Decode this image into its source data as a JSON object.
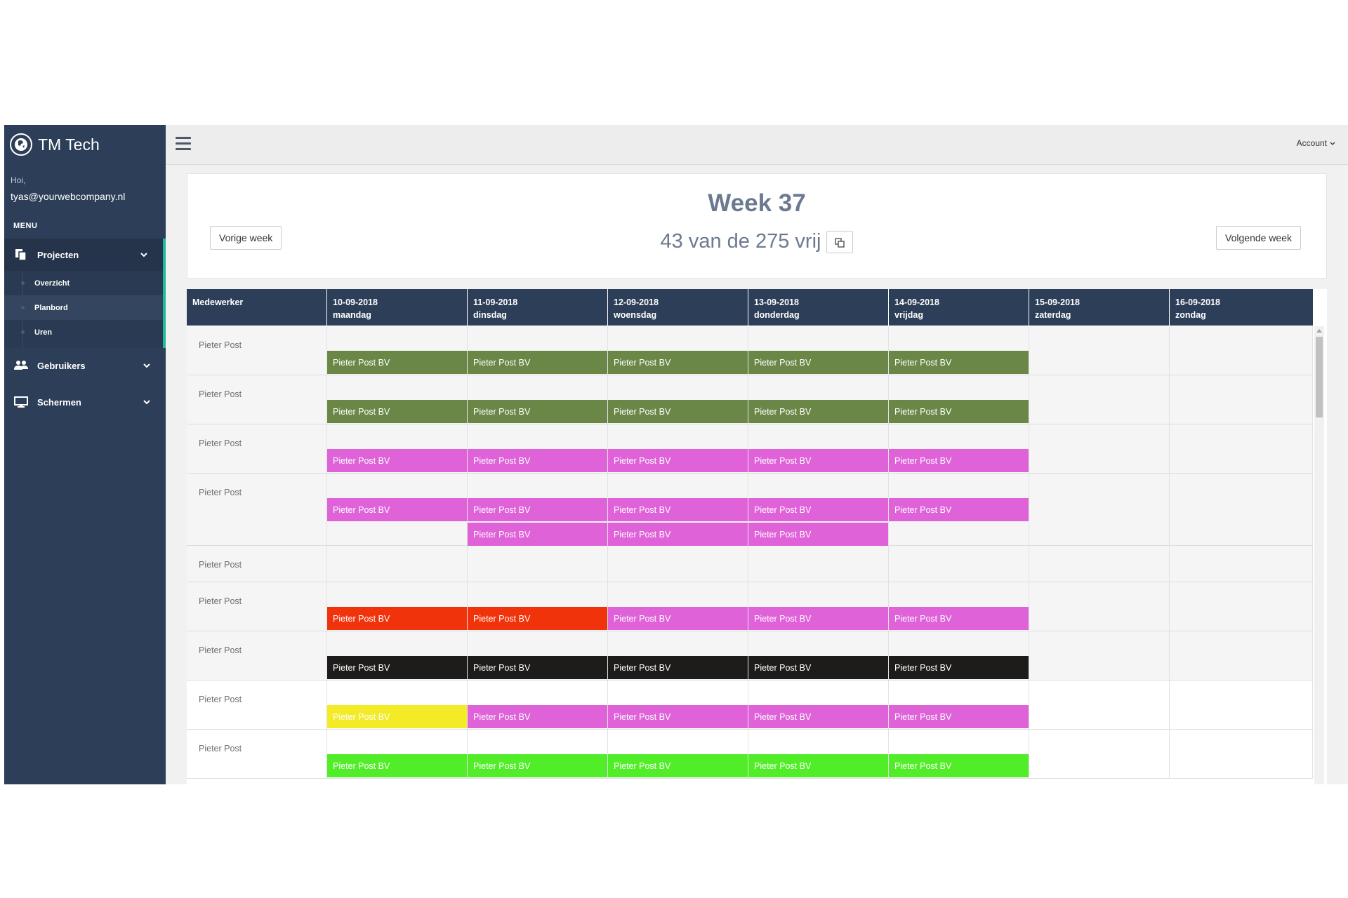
{
  "app": {
    "brand": "TM Tech"
  },
  "sidebar": {
    "greeting": "Hoi,",
    "email": "tyas@yourwebcompany.nl",
    "menu_title": "MENU",
    "items": [
      {
        "label": "Projecten",
        "icon": "copy-icon"
      },
      {
        "label": "Gebruikers",
        "icon": "users-icon"
      },
      {
        "label": "Schermen",
        "icon": "monitor-icon"
      }
    ],
    "submenu": [
      "Overzicht",
      "Planbord",
      "Uren"
    ]
  },
  "topbar": {
    "account_label": "Account"
  },
  "week": {
    "title": "Week 37",
    "subtitle": "43 van de 275 vrij",
    "prev_label": "Vorige week",
    "next_label": "Volgende week"
  },
  "table": {
    "employee_header": "Medewerker",
    "days": [
      {
        "date": "10-09-2018",
        "day": "maandag"
      },
      {
        "date": "11-09-2018",
        "day": "dinsdag"
      },
      {
        "date": "12-09-2018",
        "day": "woensdag"
      },
      {
        "date": "13-09-2018",
        "day": "donderdag"
      },
      {
        "date": "14-09-2018",
        "day": "vrijdag"
      },
      {
        "date": "15-09-2018",
        "day": "zaterdag"
      },
      {
        "date": "16-09-2018",
        "day": "zondag"
      }
    ],
    "rows": [
      {
        "name": "Pieter Post",
        "slots": [
          [
            {
              "label": "Pieter Post BV",
              "color": "#6b8748"
            }
          ],
          [
            {
              "label": "Pieter Post BV",
              "color": "#6b8748"
            }
          ],
          [
            {
              "label": "Pieter Post BV",
              "color": "#6b8748"
            }
          ],
          [
            {
              "label": "Pieter Post BV",
              "color": "#6b8748"
            }
          ],
          [
            {
              "label": "Pieter Post BV",
              "color": "#6b8748"
            }
          ],
          [],
          []
        ]
      },
      {
        "name": "Pieter Post",
        "slots": [
          [
            {
              "label": "Pieter Post BV",
              "color": "#6b8748"
            }
          ],
          [
            {
              "label": "Pieter Post BV",
              "color": "#6b8748"
            }
          ],
          [
            {
              "label": "Pieter Post BV",
              "color": "#6b8748"
            }
          ],
          [
            {
              "label": "Pieter Post BV",
              "color": "#6b8748"
            }
          ],
          [
            {
              "label": "Pieter Post BV",
              "color": "#6b8748"
            }
          ],
          [],
          []
        ]
      },
      {
        "name": "Pieter Post",
        "slots": [
          [
            {
              "label": "Pieter Post BV",
              "color": "#df62d9"
            }
          ],
          [
            {
              "label": "Pieter Post BV",
              "color": "#df62d9"
            }
          ],
          [
            {
              "label": "Pieter Post BV",
              "color": "#df62d9"
            }
          ],
          [
            {
              "label": "Pieter Post BV",
              "color": "#df62d9"
            }
          ],
          [
            {
              "label": "Pieter Post BV",
              "color": "#df62d9"
            }
          ],
          [],
          []
        ]
      },
      {
        "name": "Pieter Post",
        "slots": [
          [
            {
              "label": "Pieter Post BV",
              "color": "#df62d9"
            }
          ],
          [
            {
              "label": "Pieter Post BV",
              "color": "#df62d9"
            },
            {
              "label": "Pieter Post BV",
              "color": "#df62d9"
            }
          ],
          [
            {
              "label": "Pieter Post BV",
              "color": "#df62d9"
            },
            {
              "label": "Pieter Post BV",
              "color": "#df62d9"
            }
          ],
          [
            {
              "label": "Pieter Post BV",
              "color": "#df62d9"
            },
            {
              "label": "Pieter Post BV",
              "color": "#df62d9"
            }
          ],
          [
            {
              "label": "Pieter Post BV",
              "color": "#df62d9"
            }
          ],
          [],
          []
        ]
      },
      {
        "name": "Pieter Post",
        "slots": [
          [],
          [],
          [],
          [],
          [],
          [],
          []
        ]
      },
      {
        "name": "Pieter Post",
        "slots": [
          [
            {
              "label": "Pieter Post BV",
              "color": "#f1330c"
            }
          ],
          [
            {
              "label": "Pieter Post BV",
              "color": "#f1330c"
            }
          ],
          [
            {
              "label": "Pieter Post BV",
              "color": "#df62d9"
            }
          ],
          [
            {
              "label": "Pieter Post BV",
              "color": "#df62d9"
            }
          ],
          [
            {
              "label": "Pieter Post BV",
              "color": "#df62d9"
            }
          ],
          [],
          []
        ]
      },
      {
        "name": "Pieter Post",
        "slots": [
          [
            {
              "label": "Pieter Post BV",
              "color": "#1e1b1b"
            }
          ],
          [
            {
              "label": "Pieter Post BV",
              "color": "#1e1b1b"
            }
          ],
          [
            {
              "label": "Pieter Post BV",
              "color": "#1e1b1b"
            }
          ],
          [
            {
              "label": "Pieter Post BV",
              "color": "#1e1b1b"
            }
          ],
          [
            {
              "label": "Pieter Post BV",
              "color": "#1e1b1b"
            }
          ],
          [],
          []
        ]
      },
      {
        "name": "Pieter Post",
        "slots": [
          [
            {
              "label": "Pieter Post BV",
              "color": "#f2eb26"
            }
          ],
          [
            {
              "label": "Pieter Post BV",
              "color": "#df62d9"
            }
          ],
          [
            {
              "label": "Pieter Post BV",
              "color": "#df62d9"
            }
          ],
          [
            {
              "label": "Pieter Post BV",
              "color": "#df62d9"
            }
          ],
          [
            {
              "label": "Pieter Post BV",
              "color": "#df62d9"
            }
          ],
          [],
          []
        ]
      },
      {
        "name": "Pieter Post",
        "slots": [
          [
            {
              "label": "Pieter Post BV",
              "color": "#52ed29"
            }
          ],
          [
            {
              "label": "Pieter Post BV",
              "color": "#52ed29"
            }
          ],
          [
            {
              "label": "Pieter Post BV",
              "color": "#52ed29"
            }
          ],
          [
            {
              "label": "Pieter Post BV",
              "color": "#52ed29"
            }
          ],
          [
            {
              "label": "Pieter Post BV",
              "color": "#52ed29"
            }
          ],
          [],
          []
        ]
      }
    ]
  }
}
